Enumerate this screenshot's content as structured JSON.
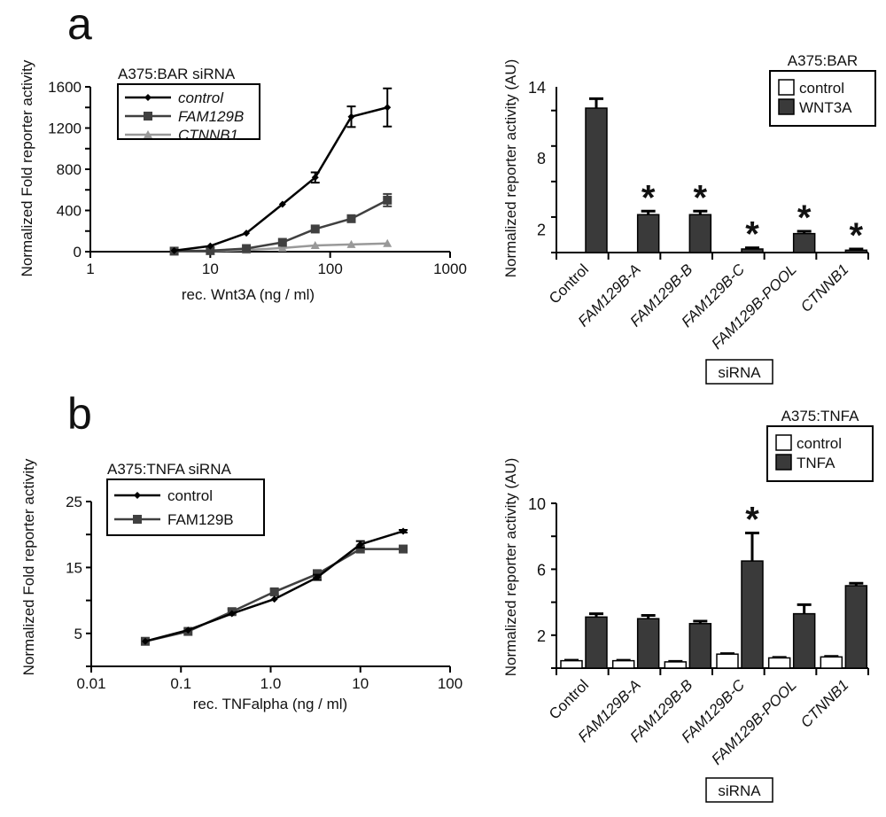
{
  "panel_labels": [
    "a",
    "b"
  ],
  "chart_data": [
    {
      "id": "a-line",
      "type": "line",
      "legend_title": "A375:BAR  siRNA",
      "xlabel": "rec. Wnt3A (ng / ml)",
      "ylabel": "Normalized Fold reporter activity",
      "xscale": "log",
      "xlim": [
        1,
        1000
      ],
      "ylim": [
        0,
        1600
      ],
      "xticks": [
        "1",
        "10",
        "100",
        "1000"
      ],
      "yticks": [
        "0",
        "400",
        "800",
        "1200",
        "1600"
      ],
      "legend_placement": "top-left",
      "x": [
        5,
        10,
        20,
        40,
        75,
        150,
        300
      ],
      "series": [
        {
          "name": "control",
          "italic": true,
          "color": "#000000",
          "marker": "diamond",
          "values": [
            10,
            55,
            180,
            460,
            720,
            1310,
            1400
          ],
          "errors": [
            0,
            0,
            0,
            0,
            50,
            100,
            185
          ]
        },
        {
          "name": "FAM129B",
          "italic": true,
          "color": "#404040",
          "marker": "square",
          "values": [
            5,
            10,
            30,
            90,
            220,
            320,
            500
          ],
          "errors": [
            0,
            0,
            0,
            0,
            0,
            0,
            60
          ]
        },
        {
          "name": "CTNNB1",
          "italic": true,
          "color": "#999999",
          "marker": "triangle",
          "values": [
            2,
            5,
            15,
            35,
            60,
            70,
            80
          ],
          "errors": [
            0,
            0,
            0,
            0,
            0,
            0,
            0
          ]
        }
      ]
    },
    {
      "id": "a-bar",
      "type": "bar",
      "legend_title": "A375:BAR",
      "ylabel": "Normalized reporter activity (AU)",
      "xlabel": "siRNA",
      "ylim": [
        0,
        14
      ],
      "yticks": [
        "2",
        "8",
        "14"
      ],
      "legend_placement": "top-right",
      "categories": [
        "Control",
        "FAM129B-A",
        "FAM129B-B",
        "FAM129B-C",
        "FAM129B-POOL",
        "CTNNB1"
      ],
      "italic_categories": [
        false,
        true,
        true,
        true,
        true,
        true
      ],
      "series": [
        {
          "name": "control",
          "color": "#ffffff",
          "values": [
            null,
            null,
            null,
            null,
            null,
            null
          ],
          "errors": [
            null,
            null,
            null,
            null,
            null,
            null
          ]
        },
        {
          "name": "WNT3A",
          "color": "#3a3a3a",
          "values": [
            12.2,
            3.2,
            3.2,
            0.3,
            1.6,
            0.2
          ],
          "errors": [
            0.8,
            0.3,
            0.3,
            0.1,
            0.2,
            0.1
          ]
        }
      ],
      "significant": [
        false,
        true,
        true,
        true,
        true,
        true
      ],
      "significance_mark": "*"
    },
    {
      "id": "b-line",
      "type": "line",
      "legend_title": "A375:TNFA  siRNA",
      "xlabel": "rec. TNFalpha (ng / ml)",
      "ylabel": "Normalized Fold reporter activity",
      "xscale": "log",
      "xlim": [
        0.01,
        100
      ],
      "ylim": [
        0,
        25
      ],
      "xticks": [
        "0.01",
        "0.1",
        "1.0",
        "10",
        "100"
      ],
      "yticks": [
        "5",
        "15",
        "25"
      ],
      "legend_placement": "top-left",
      "x": [
        0.04,
        0.12,
        0.37,
        1.1,
        3.3,
        10,
        30
      ],
      "series": [
        {
          "name": "control",
          "italic": false,
          "color": "#000000",
          "marker": "diamond",
          "values": [
            3.8,
            5.5,
            8.0,
            10.2,
            13.5,
            18.5,
            20.5
          ],
          "errors": [
            0,
            0,
            0,
            0,
            0.4,
            0.5,
            0.2
          ]
        },
        {
          "name": "FAM129B",
          "italic": false,
          "color": "#404040",
          "marker": "square",
          "values": [
            3.8,
            5.3,
            8.3,
            11.3,
            14.0,
            17.8,
            17.8
          ],
          "errors": [
            0,
            0,
            0.4,
            0.4,
            0.6,
            0,
            0
          ]
        }
      ]
    },
    {
      "id": "b-bar",
      "type": "bar",
      "legend_title": "A375:TNFA",
      "ylabel": "Normalized  reporter activity (AU)",
      "xlabel": "siRNA",
      "ylim": [
        0,
        10
      ],
      "yticks": [
        "2",
        "6",
        "10"
      ],
      "legend_placement": "top-right",
      "categories": [
        "Control",
        "FAM129B-A",
        "FAM129B-B",
        "FAM129B-C",
        "FAM129B-POOL",
        "CTNNB1"
      ],
      "italic_categories": [
        false,
        true,
        true,
        true,
        true,
        true
      ],
      "series": [
        {
          "name": "control",
          "color": "#ffffff",
          "values": [
            0.45,
            0.45,
            0.38,
            0.85,
            0.62,
            0.68
          ],
          "errors": [
            0.03,
            0.03,
            0.03,
            0.03,
            0.03,
            0.03
          ]
        },
        {
          "name": "TNFA",
          "color": "#3a3a3a",
          "values": [
            3.1,
            3.0,
            2.7,
            6.5,
            3.3,
            5.0
          ],
          "errors": [
            0.2,
            0.2,
            0.15,
            1.7,
            0.55,
            0.15
          ]
        }
      ],
      "significant": [
        false,
        false,
        false,
        true,
        false,
        false
      ],
      "significance_mark": "*"
    }
  ]
}
